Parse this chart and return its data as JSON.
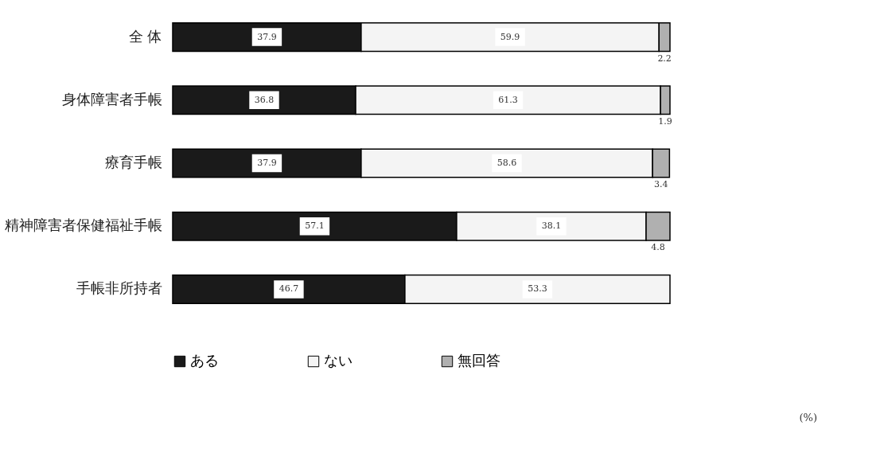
{
  "chart_data": {
    "type": "bar",
    "orientation": "horizontal",
    "stacked": true,
    "data_labels": true,
    "legend": "bottom",
    "categories": [
      "全 体",
      "身体障害者手帳",
      "療育手帳",
      "精神障害者保健福祉手帳",
      "手帳非所持者"
    ],
    "series": [
      {
        "name": "ある",
        "color": "#1a1a1a",
        "values": [
          37.9,
          36.8,
          37.9,
          57.1,
          46.7
        ]
      },
      {
        "name": "ない",
        "color": "#f4f4f4",
        "values": [
          59.9,
          61.3,
          58.6,
          38.1,
          53.3
        ]
      },
      {
        "name": "無回答",
        "color": "#b0b0b0",
        "values": [
          2.2,
          1.9,
          3.4,
          4.8,
          null
        ]
      }
    ],
    "annotations": [
      "(%)"
    ]
  }
}
